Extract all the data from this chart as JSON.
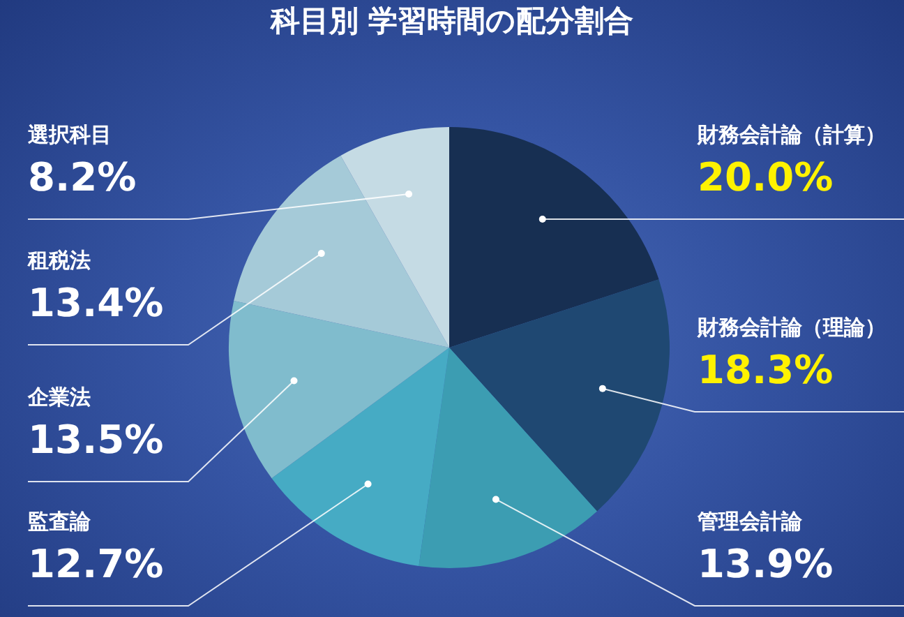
{
  "chart_data": {
    "type": "pie",
    "title": "科目別 学習時間の配分割合",
    "categories": [
      "財務会計論（計算）",
      "財務会計論（理論）",
      "管理会計論",
      "監査論",
      "企業法",
      "租税法",
      "選択科目"
    ],
    "values": [
      20.0,
      18.3,
      13.9,
      12.7,
      13.5,
      13.4,
      8.2
    ],
    "colors": [
      "#172f52",
      "#1f4872",
      "#3c9db2",
      "#46abc4",
      "#80bccd",
      "#a5cad8",
      "#c5dbe4"
    ],
    "value_labels": [
      "20.0%",
      "18.3%",
      "13.9%",
      "12.7%",
      "13.5%",
      "13.4%",
      "8.2%"
    ],
    "legend": false
  }
}
